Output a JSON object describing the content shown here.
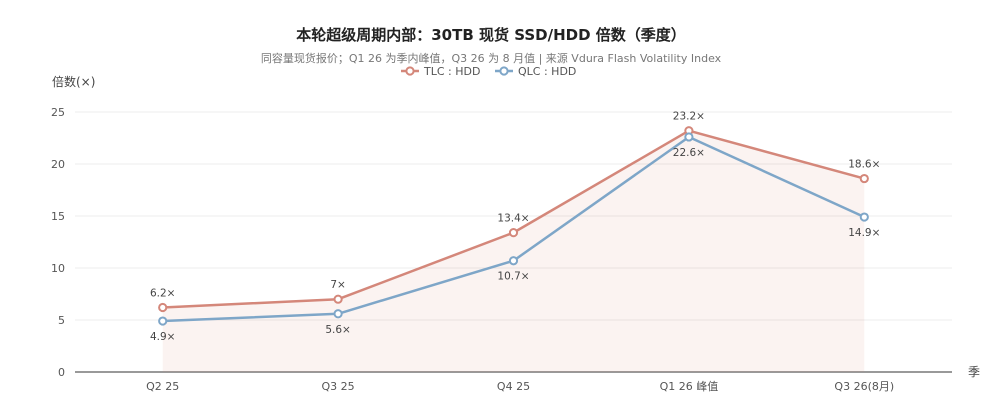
{
  "chart_data": {
    "type": "line",
    "title": "本轮超级周期内部：30TB 现货 SSD/HDD 倍数（季度）",
    "subtitle": "同容量现货报价；Q1 26 为季内峰值，Q3 26 为 8 月值 | 来源 Vdura Flash Volatility Index",
    "ylabel": "倍数(×)",
    "xlabel": "季",
    "categories": [
      "Q2 25",
      "Q3 25",
      "Q4 25",
      "Q1 26 峰值",
      "Q3 26(8月)"
    ],
    "ylim": [
      0,
      25
    ],
    "yticks": [
      0,
      5,
      10,
      15,
      20,
      25
    ],
    "grid": true,
    "legend_position": "top-center",
    "series": [
      {
        "name": "TLC : HDD",
        "values": [
          6.2,
          7,
          13.4,
          23.2,
          18.6
        ],
        "labels": [
          "6.2×",
          "7×",
          "13.4×",
          "23.2×",
          "18.6×"
        ],
        "color": "#d4877a",
        "area": true
      },
      {
        "name": "QLC : HDD",
        "values": [
          4.9,
          5.6,
          10.7,
          22.6,
          14.9
        ],
        "labels": [
          "4.9×",
          "5.6×",
          "10.7×",
          "22.6×",
          "14.9×"
        ],
        "color": "#7ea6c8",
        "area": false
      }
    ]
  }
}
